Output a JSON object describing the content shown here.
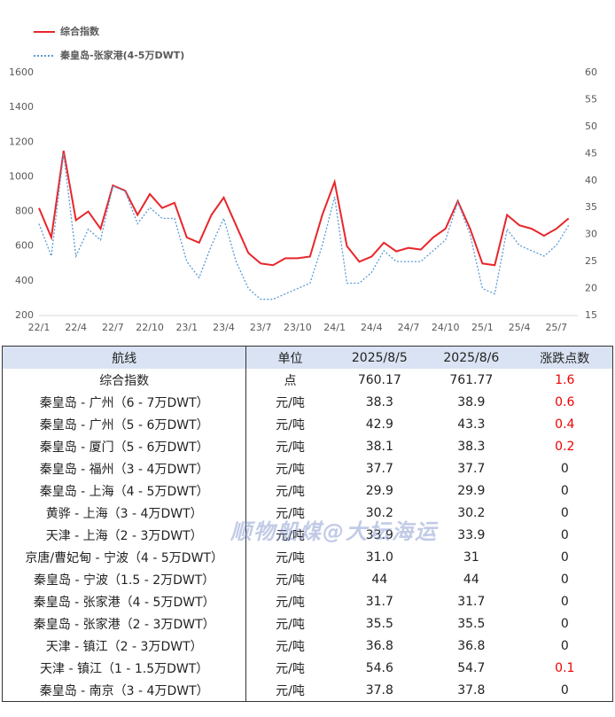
{
  "chart_data": {
    "type": "line",
    "categories": [
      "22/1",
      null,
      null,
      "22/4",
      null,
      null,
      "22/7",
      null,
      null,
      "22/10",
      null,
      null,
      "23/1",
      null,
      null,
      "23/4",
      null,
      null,
      "23/7",
      null,
      null,
      "23/10",
      null,
      null,
      "24/1",
      null,
      null,
      "24/4",
      null,
      null,
      "24/7",
      null,
      null,
      "24/10",
      null,
      null,
      "25/1",
      null,
      null,
      "25/4",
      null,
      null,
      "25/7",
      null
    ],
    "series": [
      {
        "name": "综合指数",
        "color": "#e8262b",
        "values": [
          820,
          650,
          1150,
          750,
          800,
          700,
          950,
          920,
          780,
          900,
          820,
          850,
          650,
          620,
          780,
          880,
          720,
          560,
          500,
          490,
          530,
          530,
          540,
          780,
          970,
          600,
          510,
          540,
          620,
          570,
          590,
          580,
          650,
          700,
          860,
          700,
          500,
          490,
          780,
          720,
          700,
          660,
          700,
          760
        ]
      },
      {
        "name": "秦皇岛-张家港(4-5万DWT)",
        "color": "#5b9bd5",
        "axis": "y2",
        "values": [
          32,
          26,
          45,
          26,
          31,
          29,
          39,
          38,
          32,
          35,
          33,
          33,
          25,
          22,
          28,
          33,
          25,
          20,
          18,
          18,
          19,
          20,
          21,
          28,
          37,
          21,
          21,
          23,
          27,
          25,
          25,
          25,
          27,
          29,
          36,
          30,
          20,
          19,
          31,
          28,
          27,
          26,
          28,
          31.7
        ]
      }
    ],
    "ylim": [
      200,
      1600
    ],
    "yticks": [
      200,
      400,
      600,
      800,
      1000,
      1200,
      1400,
      1600
    ],
    "y2lim": [
      15,
      60
    ],
    "y2ticks": [
      15,
      20,
      25,
      30,
      35,
      40,
      45,
      50,
      55,
      60
    ]
  },
  "table": {
    "header": [
      "航线",
      "单位",
      "2025/8/5",
      "2025/8/6",
      "涨跌点数"
    ],
    "rows": [
      [
        "综合指数",
        "点",
        "760.17",
        "761.77",
        "1.6"
      ],
      [
        "秦皇岛 - 广州（6 - 7万DWT）",
        "元/吨",
        "38.3",
        "38.9",
        "0.6"
      ],
      [
        "秦皇岛 - 广州（5 - 6万DWT）",
        "元/吨",
        "42.9",
        "43.3",
        "0.4"
      ],
      [
        "秦皇岛 - 厦门（5 - 6万DWT）",
        "元/吨",
        "38.1",
        "38.3",
        "0.2"
      ],
      [
        "秦皇岛 - 福州（3 - 4万DWT）",
        "元/吨",
        "37.7",
        "37.7",
        "0"
      ],
      [
        "秦皇岛 - 上海（4 - 5万DWT）",
        "元/吨",
        "29.9",
        "29.9",
        "0"
      ],
      [
        "黄骅 - 上海（3 - 4万DWT）",
        "元/吨",
        "30.2",
        "30.2",
        "0"
      ],
      [
        "天津 - 上海（2 - 3万DWT）",
        "元/吨",
        "33.9",
        "33.9",
        "0"
      ],
      [
        "京唐/曹妃甸 - 宁波（4 - 5万DWT）",
        "元/吨",
        "31.0",
        "31",
        "0"
      ],
      [
        "秦皇岛 - 宁波（1.5 - 2万DWT）",
        "元/吨",
        "44",
        "44",
        "0"
      ],
      [
        "秦皇岛 - 张家港（4 - 5万DWT）",
        "元/吨",
        "31.7",
        "31.7",
        "0"
      ],
      [
        "秦皇岛 - 张家港（2 - 3万DWT）",
        "元/吨",
        "35.5",
        "35.5",
        "0"
      ],
      [
        "天津 - 镇江（2 - 3万DWT）",
        "元/吨",
        "36.8",
        "36.8",
        "0"
      ],
      [
        "天津 - 镇江（1 - 1.5万DWT）",
        "元/吨",
        "54.6",
        "54.7",
        "0.1"
      ],
      [
        "秦皇岛 - 南京（3 - 4万DWT）",
        "元/吨",
        "37.8",
        "37.8",
        "0"
      ]
    ]
  },
  "watermark": "顺物船煤@大坛海运"
}
